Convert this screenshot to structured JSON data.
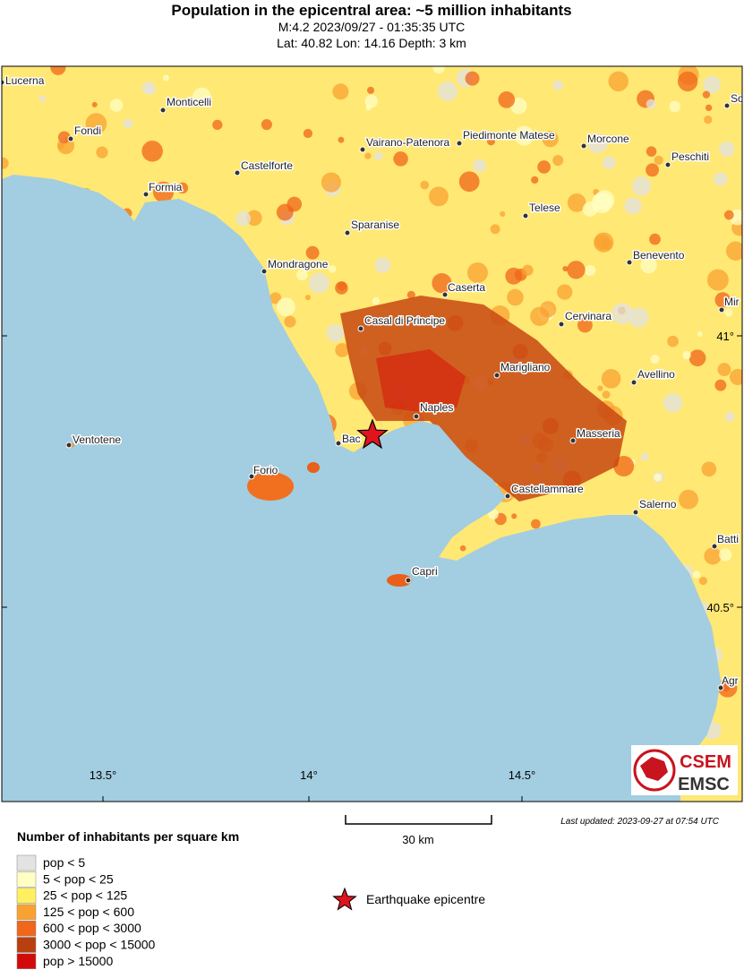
{
  "header": {
    "title": "Population in the epicentral area: ~5 million inhabitants",
    "line1": "M:4.2 2023/09/27 - 01:35:35 UTC",
    "line2": "Lat: 40.82 Lon: 14.16 Depth: 3 km"
  },
  "map": {
    "cities": [
      "Lucerna",
      "Monticelli",
      "Fondi",
      "Vairano-Patenora",
      "Piedimonte Matese",
      "Morcone",
      "Peschiti",
      "Castelforte",
      "Formia",
      "Telese",
      "Sparanise",
      "Benevento",
      "Mondragone",
      "Caserta",
      "Casal di Principe",
      "Cervinara",
      "Marigliano",
      "Avellino",
      "Naples",
      "Masseria",
      "Bac",
      "Forio",
      "Ventotene",
      "Castellammare",
      "Salerno",
      "Capri",
      "So",
      "Mir",
      "Batti",
      "Agr"
    ],
    "lon_labels": [
      "13.5°",
      "14°",
      "14.5°"
    ],
    "lat_labels": [
      "41°",
      "40.5°"
    ],
    "logo": [
      "CSEM",
      "EMSC"
    ]
  },
  "scale": {
    "label": "30 km"
  },
  "updated": "Last updated: 2023-09-27 at 07:54 UTC",
  "legend": {
    "title": "Number of inhabitants per square km",
    "items": [
      {
        "label": "pop < 5",
        "color": "#e3e3e3"
      },
      {
        "label": "5 < pop < 25",
        "color": "#ffffc4"
      },
      {
        "label": "25 < pop < 125",
        "color": "#fff060"
      },
      {
        "label": "125 < pop < 600",
        "color": "#f9a232"
      },
      {
        "label": "600 < pop < 3000",
        "color": "#f0661a"
      },
      {
        "label": "3000 < pop < 15000",
        "color": "#b8400f"
      },
      {
        "label": "pop > 15000",
        "color": "#d20a0a"
      }
    ],
    "epicentre": "Earthquake epicentre"
  }
}
